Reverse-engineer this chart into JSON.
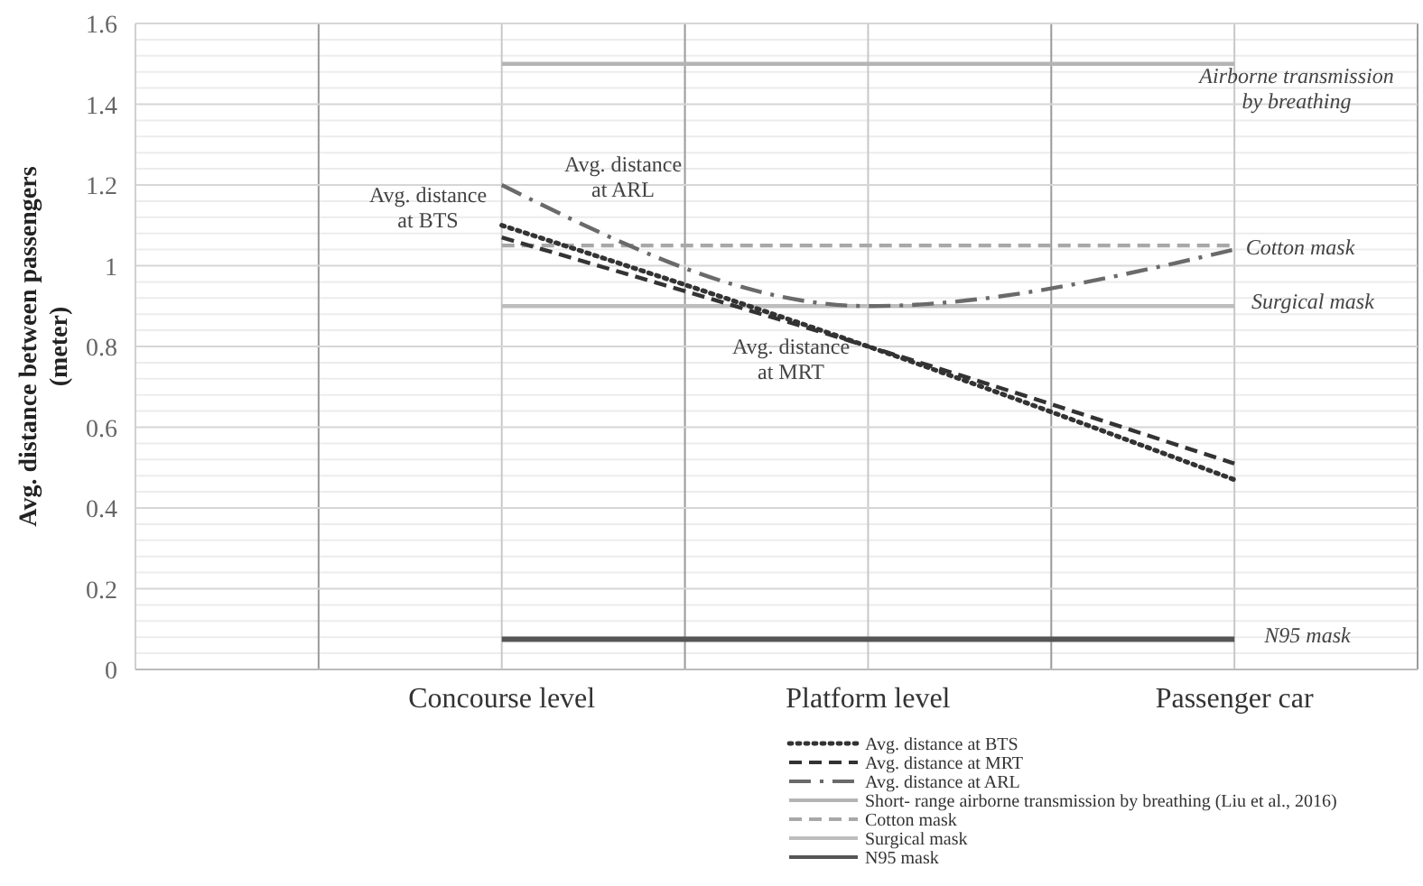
{
  "chart_data": {
    "type": "line",
    "ylabel": "Avg. distance between passengers (meter)",
    "categories": [
      "Concourse level",
      "Platform level",
      "Passenger car"
    ],
    "series": [
      {
        "name": "Avg. distance at BTS",
        "color": "#333333",
        "line_style": "dotted",
        "values": [
          1.1,
          0.8,
          0.47
        ]
      },
      {
        "name": "Avg. distance at MRT",
        "color": "#333333",
        "line_style": "dashed",
        "values": [
          1.07,
          0.8,
          0.51
        ]
      },
      {
        "name": "Avg. distance at ARL",
        "color": "#6a6a6a",
        "line_style": "dashdot",
        "values": [
          1.2,
          0.9,
          1.04
        ]
      },
      {
        "name": "Short- range airborne transmission by breathing (Liu et al., 2016)",
        "color": "#b4b4b4",
        "line_style": "solid",
        "values": [
          1.5,
          1.5,
          1.5
        ]
      },
      {
        "name": "Cotton mask",
        "color": "#a8a8a8",
        "line_style": "dashed",
        "values": [
          1.05,
          1.05,
          1.05
        ]
      },
      {
        "name": "Surgical mask",
        "color": "#bdbdbd",
        "line_style": "solid",
        "values": [
          0.9,
          0.9,
          0.9
        ]
      },
      {
        "name": "N95 mask",
        "color": "#555555",
        "line_style": "solid",
        "values": [
          0.075,
          0.075,
          0.075
        ]
      }
    ],
    "annotations": [
      "Avg. distance at BTS",
      "Avg. distance at ARL",
      "Avg. distance at MRT",
      "Airborne transmission by breathing",
      "Cotton mask",
      "Surgical mask",
      "N95 mask"
    ],
    "ylim": [
      0,
      1.6
    ],
    "yticks": [
      0,
      0.2,
      0.4,
      0.6,
      0.8,
      1,
      1.2,
      1.4,
      1.6
    ],
    "grid": true,
    "legend": "bottom"
  }
}
